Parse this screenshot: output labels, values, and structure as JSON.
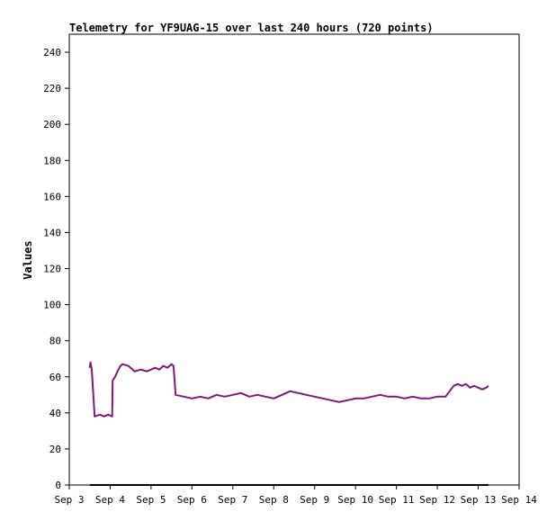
{
  "chart_data": {
    "type": "line",
    "title": "Telemetry for YF9UAG-15 over last 240 hours (720 points)",
    "ylabel": "Values",
    "xlabel": "",
    "ylim": [
      0,
      250
    ],
    "yticks": [
      0,
      20,
      40,
      60,
      80,
      100,
      120,
      140,
      160,
      180,
      200,
      220,
      240
    ],
    "xlim": [
      "Sep 3",
      "Sep 14"
    ],
    "xticks": [
      "Sep 3",
      "Sep 4",
      "Sep 5",
      "Sep 6",
      "Sep 7",
      "Sep 8",
      "Sep 9",
      "Sep 10",
      "Sep 11",
      "Sep 12",
      "Sep 13",
      "Sep 14"
    ],
    "grid": false,
    "colors": {
      "series": "#7a1a78",
      "zero": "#000000",
      "axis": "#000000"
    },
    "series": [
      {
        "values": [
          [
            "Sep 3.50",
            65
          ],
          [
            "Sep 3.52",
            68
          ],
          [
            "Sep 3.55",
            64
          ],
          [
            "Sep 3.62",
            38
          ],
          [
            "Sep 3.75",
            39
          ],
          [
            "Sep 3.85",
            38
          ],
          [
            "Sep 3.95",
            39
          ],
          [
            "Sep 4.05",
            38
          ],
          [
            "Sep 4.06",
            58
          ],
          [
            "Sep 4.12",
            60
          ],
          [
            "Sep 4.18",
            63
          ],
          [
            "Sep 4.25",
            66
          ],
          [
            "Sep 4.30",
            67
          ],
          [
            "Sep 4.45",
            66
          ],
          [
            "Sep 4.55",
            64
          ],
          [
            "Sep 4.60",
            63
          ],
          [
            "Sep 4.75",
            64
          ],
          [
            "Sep 4.90",
            63
          ],
          [
            "Sep 5.00",
            64
          ],
          [
            "Sep 5.10",
            65
          ],
          [
            "Sep 5.20",
            64
          ],
          [
            "Sep 5.30",
            66
          ],
          [
            "Sep 5.40",
            65
          ],
          [
            "Sep 5.50",
            67
          ],
          [
            "Sep 5.55",
            66
          ],
          [
            "Sep 5.60",
            50
          ],
          [
            "Sep 5.80",
            49
          ],
          [
            "Sep 6.00",
            48
          ],
          [
            "Sep 6.20",
            49
          ],
          [
            "Sep 6.40",
            48
          ],
          [
            "Sep 6.60",
            50
          ],
          [
            "Sep 6.80",
            49
          ],
          [
            "Sep 7.00",
            50
          ],
          [
            "Sep 7.20",
            51
          ],
          [
            "Sep 7.40",
            49
          ],
          [
            "Sep 7.60",
            50
          ],
          [
            "Sep 7.80",
            49
          ],
          [
            "Sep 8.00",
            48
          ],
          [
            "Sep 8.20",
            50
          ],
          [
            "Sep 8.40",
            52
          ],
          [
            "Sep 8.60",
            51
          ],
          [
            "Sep 8.80",
            50
          ],
          [
            "Sep 9.00",
            49
          ],
          [
            "Sep 9.20",
            48
          ],
          [
            "Sep 9.40",
            47
          ],
          [
            "Sep 9.60",
            46
          ],
          [
            "Sep 9.80",
            47
          ],
          [
            "Sep 10.00",
            48
          ],
          [
            "Sep 10.20",
            48
          ],
          [
            "Sep 10.40",
            49
          ],
          [
            "Sep 10.60",
            50
          ],
          [
            "Sep 10.80",
            49
          ],
          [
            "Sep 11.00",
            49
          ],
          [
            "Sep 11.20",
            48
          ],
          [
            "Sep 11.40",
            49
          ],
          [
            "Sep 11.60",
            48
          ],
          [
            "Sep 11.80",
            48
          ],
          [
            "Sep 12.00",
            49
          ],
          [
            "Sep 12.20",
            49
          ],
          [
            "Sep 12.30",
            52
          ],
          [
            "Sep 12.40",
            55
          ],
          [
            "Sep 12.50",
            56
          ],
          [
            "Sep 12.60",
            55
          ],
          [
            "Sep 12.70",
            56
          ],
          [
            "Sep 12.80",
            54
          ],
          [
            "Sep 12.90",
            55
          ],
          [
            "Sep 13.00",
            54
          ],
          [
            "Sep 13.10",
            53
          ],
          [
            "Sep 13.20",
            54
          ],
          [
            "Sep 13.25",
            55
          ]
        ]
      },
      {
        "values": [
          [
            "Sep 3.50",
            0
          ],
          [
            "Sep 13.25",
            0
          ]
        ]
      }
    ]
  }
}
